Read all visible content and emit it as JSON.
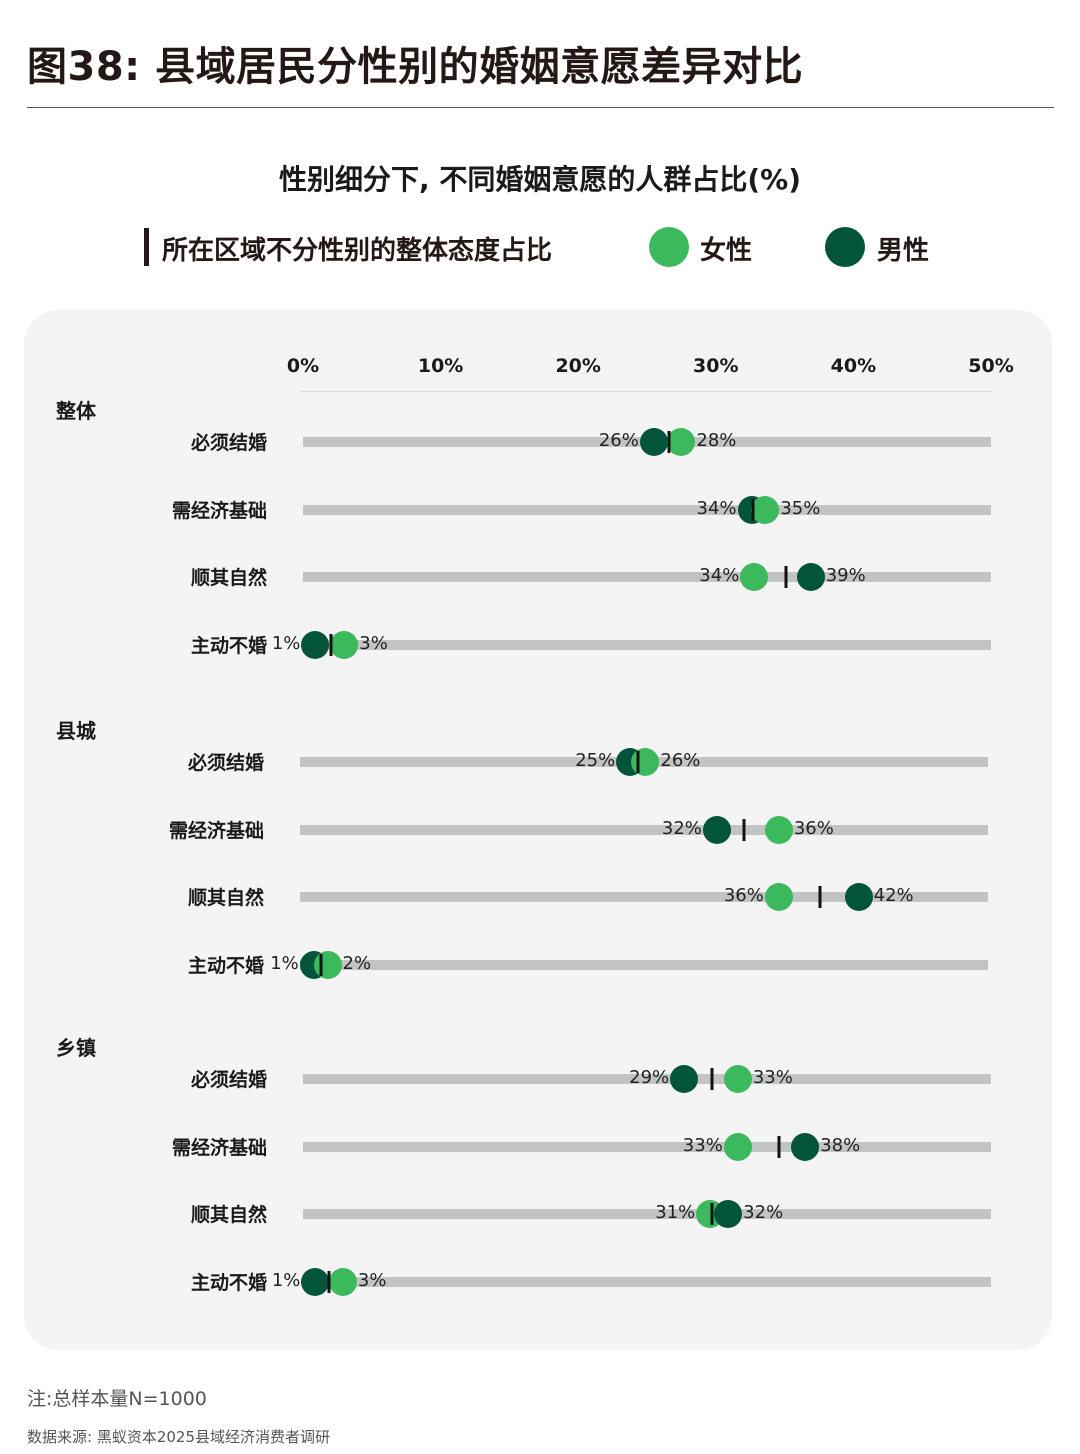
{
  "header": {
    "figure_title": "图38: 县域居民分性别的婚姻意愿差异对比",
    "chart_title": "性别细分下, 不同婚姻意愿的人群占比(%)"
  },
  "legend": {
    "overall_label": "所在区域不分性别的整体态度占比",
    "female_label": "女性",
    "male_label": "男性"
  },
  "colors": {
    "female": "#3cb95d",
    "male": "#02543a",
    "overall_marker": "#111111",
    "track": "#c2c3c3",
    "panel_bg": "#f4f4f4"
  },
  "footer": {
    "note": "注:总样本量N=1000",
    "source": "数据来源: 黑蚁资本2025县域经济消费者调研"
  },
  "chart_data": {
    "type": "dumbbell",
    "title": "性别细分下, 不同婚姻意愿的人群占比(%)",
    "xlabel": "",
    "ylabel": "",
    "xlim": [
      0,
      50
    ],
    "x_ticks": [
      "0%",
      "10%",
      "20%",
      "30%",
      "40%",
      "50%"
    ],
    "grid": false,
    "legend_position": "top",
    "legend": [
      "所在区域不分性别的整体态度占比",
      "女性",
      "男性"
    ],
    "categories": [
      "必须结婚",
      "需经济基础",
      "顺其自然",
      "主动不婚"
    ],
    "groups": [
      {
        "name": "整体",
        "rows": [
          {
            "label": "必须结婚",
            "female": 28,
            "male": 26,
            "female_label": "28%",
            "male_label": "26%",
            "overall": 26.6,
            "female_pos": 27.5,
            "male_pos": 25.5,
            "label_order": "male-left"
          },
          {
            "label": "需经济基础",
            "female": 35,
            "male": 34,
            "female_label": "35%",
            "male_label": "34%",
            "overall": 32.7,
            "female_pos": 33.6,
            "male_pos": 32.6,
            "label_order": "male-left"
          },
          {
            "label": "顺其自然",
            "female": 34,
            "male": 39,
            "female_label": "34%",
            "male_label": "39%",
            "overall": 35.1,
            "female_pos": 32.8,
            "male_pos": 36.9,
            "label_order": "female-left"
          },
          {
            "label": "主动不婚",
            "female": 3,
            "male": 1,
            "female_label": "3%",
            "male_label": "1%",
            "overall": 2.0,
            "female_pos": 3.0,
            "male_pos": 0.9,
            "label_order": "male-left"
          }
        ]
      },
      {
        "name": "县城",
        "rows": [
          {
            "label": "必须结婚",
            "female": 26,
            "male": 25,
            "female_label": "26%",
            "male_label": "25%",
            "overall": 24.6,
            "female_pos": 25.1,
            "male_pos": 24.0,
            "label_order": "male-left"
          },
          {
            "label": "需经济基础",
            "female": 36,
            "male": 32,
            "female_label": "36%",
            "male_label": "32%",
            "overall": 32.3,
            "female_pos": 34.8,
            "male_pos": 30.3,
            "label_order": "male-left"
          },
          {
            "label": "顺其自然",
            "female": 36,
            "male": 42,
            "female_label": "36%",
            "male_label": "42%",
            "overall": 37.8,
            "female_pos": 34.8,
            "male_pos": 40.6,
            "label_order": "female-left"
          },
          {
            "label": "主动不婚",
            "female": 2,
            "male": 1,
            "female_label": "2%",
            "male_label": "1%",
            "overall": 1.5,
            "female_pos": 2.0,
            "male_pos": 1.0,
            "label_order": "male-left"
          }
        ]
      },
      {
        "name": "乡镇",
        "rows": [
          {
            "label": "必须结婚",
            "female": 33,
            "male": 29,
            "female_label": "33%",
            "male_label": "29%",
            "overall": 29.7,
            "female_pos": 31.6,
            "male_pos": 27.7,
            "label_order": "male-left"
          },
          {
            "label": "需经济基础",
            "female": 33,
            "male": 38,
            "female_label": "33%",
            "male_label": "38%",
            "overall": 34.6,
            "female_pos": 31.6,
            "male_pos": 36.5,
            "label_order": "female-left"
          },
          {
            "label": "顺其自然",
            "female": 31,
            "male": 32,
            "female_label": "31%",
            "male_label": "32%",
            "overall": 29.7,
            "female_pos": 29.6,
            "male_pos": 30.9,
            "label_order": "female-left"
          },
          {
            "label": "主动不婚",
            "female": 3,
            "male": 1,
            "female_label": "3%",
            "male_label": "1%",
            "overall": 1.9,
            "female_pos": 2.9,
            "male_pos": 0.9,
            "label_order": "male-left"
          }
        ]
      }
    ],
    "notes": "注:总样本量N=1000",
    "source": "数据来源: 黑蚁资本2025县域经济消费者调研"
  }
}
